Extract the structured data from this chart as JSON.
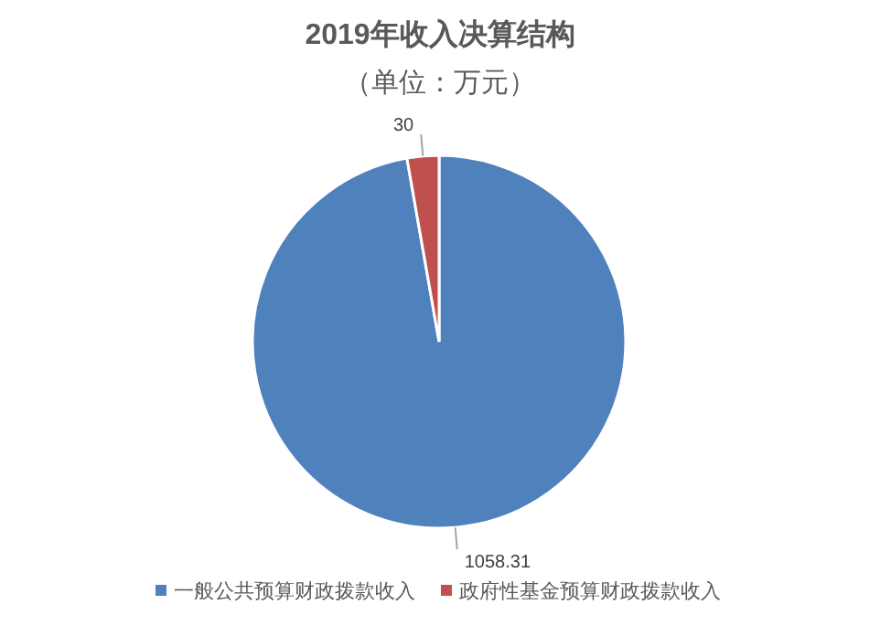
{
  "chart_data": {
    "type": "pie",
    "title": "2019年收入决算结构",
    "subtitle": "（单位：万元）",
    "categories": [
      "一般公共预算财政拨款收入",
      "政府性基金预算财政拨款收入"
    ],
    "values": [
      1058.31,
      30
    ],
    "colors": [
      "#4f81bd",
      "#c0504d"
    ],
    "data_labels": true,
    "legend": "bottom"
  }
}
